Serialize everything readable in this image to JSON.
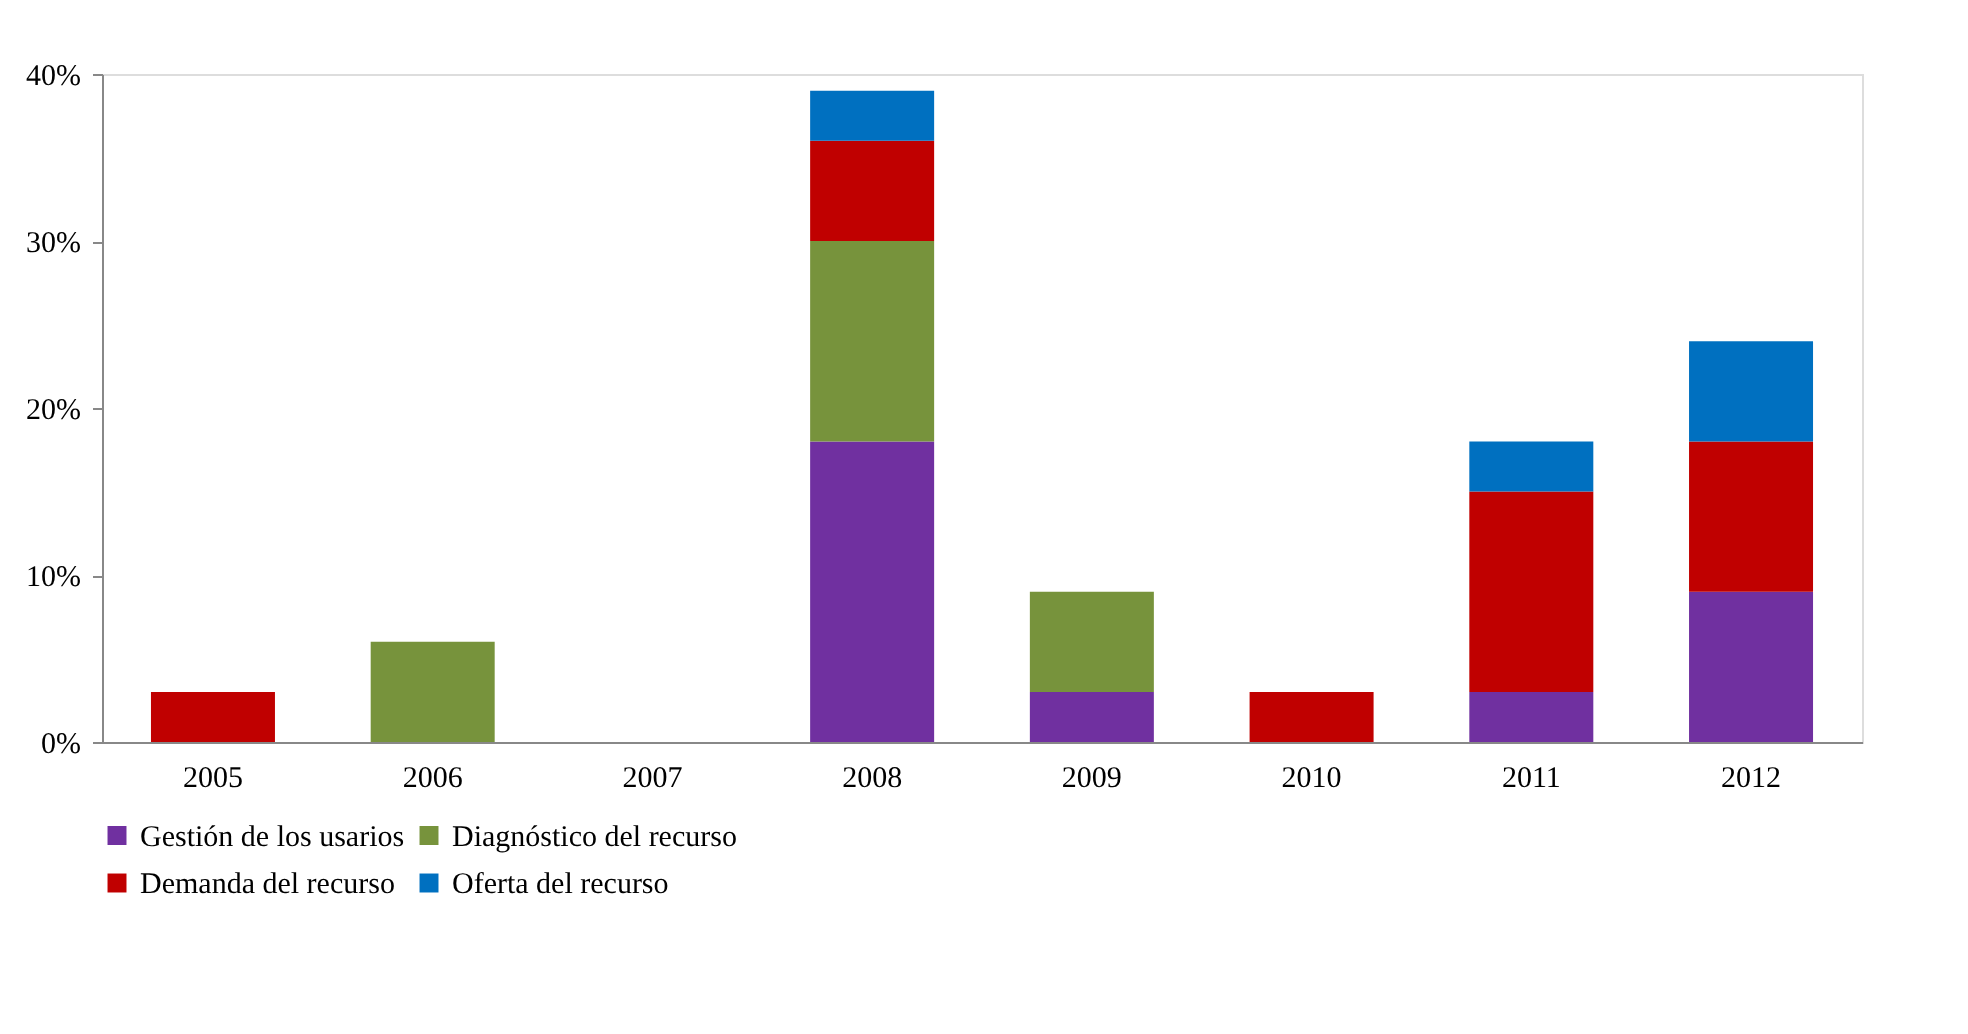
{
  "chart_data": {
    "type": "bar",
    "stacked": true,
    "categories": [
      "2005",
      "2006",
      "2007",
      "2008",
      "2009",
      "2010",
      "2011",
      "2012"
    ],
    "series": [
      {
        "name": "Gestión de los usarios",
        "color": "#7030a0",
        "values": [
          null,
          null,
          null,
          18,
          3,
          null,
          3,
          9
        ]
      },
      {
        "name": "Diagnóstico del recurso",
        "color": "#77933c",
        "values": [
          null,
          6,
          null,
          12,
          6,
          null,
          null,
          null
        ]
      },
      {
        "name": "Demanda del recurso",
        "color": "#c00000",
        "values": [
          3,
          null,
          null,
          6,
          null,
          3,
          12,
          9
        ]
      },
      {
        "name": "Oferta del recurso",
        "color": "#0070c0",
        "values": [
          null,
          null,
          null,
          3,
          null,
          null,
          3,
          6
        ]
      }
    ],
    "ylim": [
      0,
      40
    ],
    "yticks": [
      {
        "value": 0,
        "label": "0%"
      },
      {
        "value": 10,
        "label": "10%"
      },
      {
        "value": 20,
        "label": "20%"
      },
      {
        "value": 30,
        "label": "30%"
      },
      {
        "value": 40,
        "label": "40%"
      }
    ],
    "grid": false,
    "legend": "bottom"
  }
}
